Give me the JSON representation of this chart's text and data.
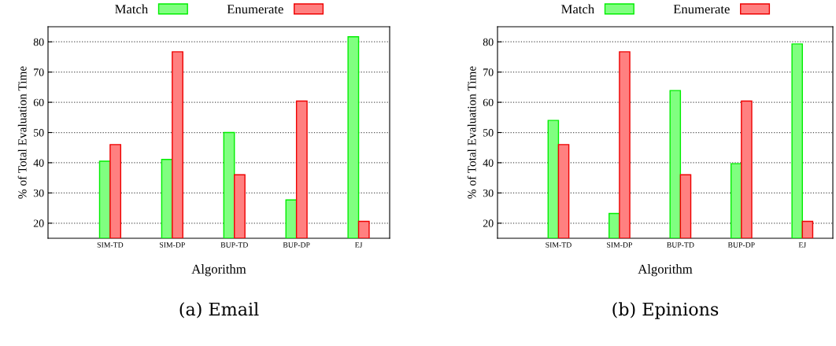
{
  "chart_data": [
    {
      "type": "bar",
      "title": "(a) Email",
      "xlabel": "Algorithm",
      "ylabel": "% of Total Evaluation Time",
      "categories": [
        "SIM-TD",
        "SIM-DP",
        "BUP-TD",
        "BUP-DP",
        "EJ"
      ],
      "series": [
        {
          "name": "Match",
          "color": "#80ff80",
          "values": [
            40.5,
            41.1,
            50,
            27.7,
            81.7
          ]
        },
        {
          "name": "Enumerate",
          "color": "#ff8080",
          "values": [
            46,
            76.7,
            36,
            60.4,
            20.6
          ]
        }
      ],
      "ylim": [
        15,
        85
      ],
      "yticks": [
        20,
        30,
        40,
        50,
        60,
        70,
        80
      ],
      "grid": "y",
      "legend": "top"
    },
    {
      "type": "bar",
      "title": "(b) Epinions",
      "xlabel": "Algorithm",
      "ylabel": "% of Total Evaluation Time",
      "categories": [
        "SIM-TD",
        "SIM-DP",
        "BUP-TD",
        "BUP-DP",
        "EJ"
      ],
      "series": [
        {
          "name": "Match",
          "color": "#80ff80",
          "values": [
            54,
            23.2,
            63.9,
            39.7,
            79.3
          ]
        },
        {
          "name": "Enumerate",
          "color": "#ff8080",
          "values": [
            46,
            76.7,
            36,
            60.4,
            20.6
          ]
        }
      ],
      "ylim": [
        15,
        85
      ],
      "yticks": [
        20,
        30,
        40,
        50,
        60,
        70,
        80
      ],
      "grid": "y",
      "legend": "top"
    }
  ]
}
